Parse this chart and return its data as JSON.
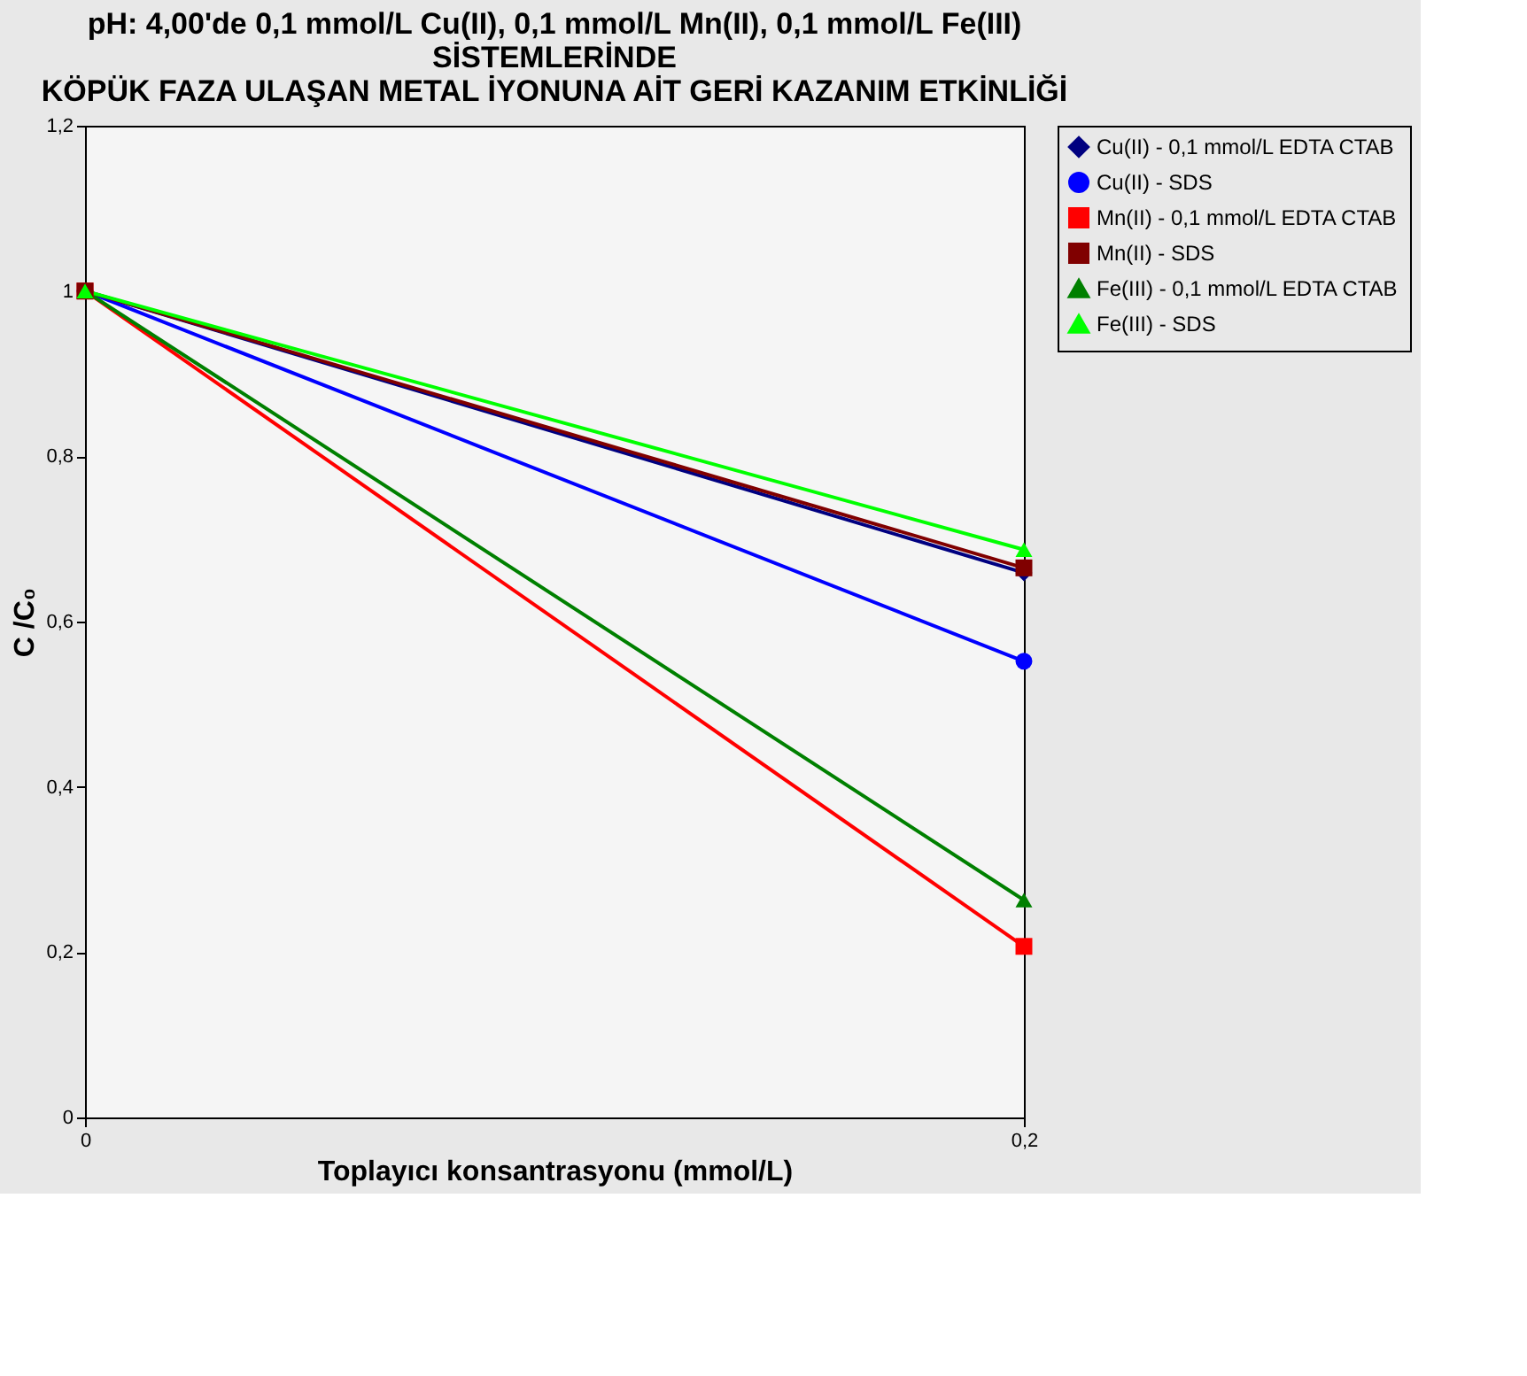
{
  "chart_data": {
    "type": "line",
    "title": [
      "pH: 4,00'de  0,1 mmol/L Cu(II),  0,1 mmol/L Mn(II),  0,1 mmol/L Fe(III)",
      "SİSTEMLERİNDE",
      "KÖPÜK FAZA ULAŞAN METAL İYONUNA AİT GERİ KAZANIM ETKİNLİĞİ"
    ],
    "xlabel": "Toplayıcı konsantrasyonu (mmol/L)",
    "ylabel": "C /C₀",
    "x": [
      0,
      0.2
    ],
    "xlim": [
      0,
      0.2
    ],
    "xticks": [
      0,
      {
        "value": 0.2,
        "label": "0,2"
      }
    ],
    "ylim": [
      0,
      1.2
    ],
    "yticks": [
      0,
      {
        "value": 0.2,
        "label": "0,2"
      },
      {
        "value": 0.4,
        "label": "0,4"
      },
      {
        "value": 0.6,
        "label": "0,6"
      },
      {
        "value": 0.8,
        "label": "0,8"
      },
      1,
      {
        "value": 1.2,
        "label": "1,2"
      }
    ],
    "grid": false,
    "legend": "right",
    "line_style": "solid",
    "series": [
      {
        "name": "Cu(II) - 0,1 mmol/L EDTA CTAB",
        "color": "#000080",
        "marker": "diamond",
        "values": [
          1,
          0.659
        ]
      },
      {
        "name": "Cu(II)  - SDS",
        "color": "#0000ff",
        "marker": "circle",
        "values": [
          1,
          0.552
        ]
      },
      {
        "name": "Mn(II) - 0,1 mmol/L EDTA CTAB",
        "color": "#ff0000",
        "marker": "square",
        "values": [
          1,
          0.207
        ]
      },
      {
        "name": "Mn(II)  -  SDS",
        "color": "#800000",
        "marker": "square",
        "values": [
          1,
          0.665
        ]
      },
      {
        "name": "Fe(III) - 0,1 mmol/L EDTA CTAB",
        "color": "#008000",
        "marker": "triangle",
        "values": [
          1,
          0.263
        ]
      },
      {
        "name": "Fe(III)  -  SDS",
        "color": "#00ff00",
        "marker": "triangle",
        "values": [
          1,
          0.687
        ]
      }
    ]
  }
}
